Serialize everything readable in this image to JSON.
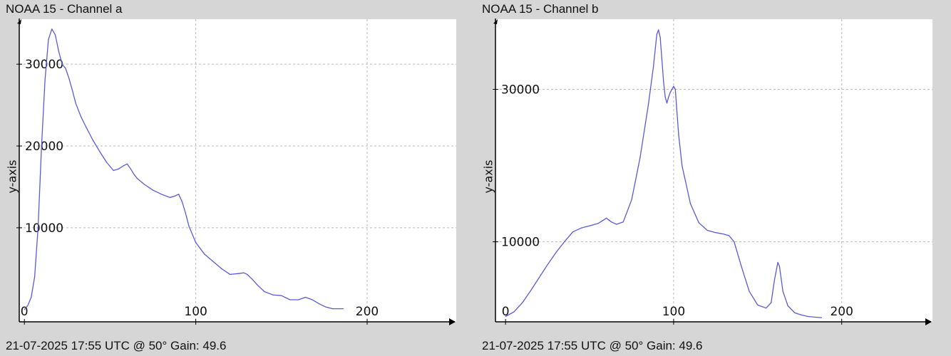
{
  "chart_data": [
    {
      "type": "line",
      "title": "NOAA 15 - Channel a",
      "footer": "21-07-2025 17:55 UTC @ 50° Gain: 49.6",
      "xlabel": "",
      "ylabel": "y-axis",
      "xlim": [
        -3,
        252
      ],
      "ylim": [
        -1500,
        35500
      ],
      "xticks": [
        0,
        100,
        200
      ],
      "yticks": [
        10000,
        20000,
        30000
      ],
      "grid": true,
      "color": "#5a5ad8",
      "series": [
        {
          "x": [
            0,
            2,
            4,
            6,
            8,
            10,
            12,
            14,
            16,
            18,
            20,
            22,
            24,
            26,
            28,
            30,
            33,
            36,
            40,
            44,
            48,
            52,
            55,
            58,
            60,
            62,
            64,
            66,
            70,
            75,
            80,
            85,
            88,
            90,
            92,
            94,
            96,
            100,
            105,
            110,
            115,
            120,
            125,
            128,
            130,
            133,
            136,
            140,
            145,
            150,
            155,
            160,
            164,
            168,
            172,
            176,
            180,
            184,
            186
          ],
          "y": [
            0,
            500,
            1500,
            4000,
            10000,
            20000,
            28000,
            33000,
            34300,
            33600,
            31600,
            30000,
            29500,
            28300,
            26800,
            25200,
            23600,
            22300,
            20700,
            19300,
            18000,
            17000,
            17200,
            17600,
            17800,
            17200,
            16500,
            16000,
            15300,
            14600,
            14100,
            13700,
            13900,
            14100,
            13200,
            11800,
            10200,
            8200,
            6800,
            5900,
            5000,
            4300,
            4400,
            4500,
            4300,
            3700,
            3000,
            2200,
            1800,
            1700,
            1200,
            1200,
            1500,
            1200,
            700,
            300,
            100,
            100,
            100
          ]
        }
      ]
    },
    {
      "type": "line",
      "title": "NOAA 15 - Channel b",
      "footer": "21-07-2025 17:55 UTC @ 50° Gain: 49.6",
      "xlabel": "",
      "ylabel": "y-axis",
      "xlim": [
        -6,
        254
      ],
      "ylim": [
        -500,
        39200
      ],
      "xticks": [
        0,
        100,
        200
      ],
      "yticks": [
        10000,
        30000
      ],
      "grid": true,
      "color": "#5a5ad8",
      "series": [
        {
          "x": [
            0,
            5,
            10,
            15,
            20,
            25,
            30,
            35,
            40,
            45,
            50,
            55,
            60,
            63,
            66,
            70,
            75,
            80,
            85,
            88,
            90,
            91,
            92,
            93,
            94,
            95,
            96,
            97,
            98,
            100,
            101,
            102,
            103,
            105,
            110,
            115,
            120,
            125,
            130,
            133,
            136,
            140,
            145,
            150,
            155,
            158,
            160,
            162,
            163,
            165,
            168,
            172,
            176,
            180,
            185,
            188
          ],
          "y": [
            200,
            800,
            2000,
            3600,
            5300,
            7000,
            8600,
            10000,
            11300,
            11800,
            12100,
            12400,
            13100,
            12600,
            12300,
            12600,
            15500,
            21000,
            28000,
            33000,
            37200,
            37800,
            36800,
            34000,
            31000,
            29000,
            28200,
            29000,
            29600,
            30400,
            30000,
            27000,
            24000,
            20000,
            15000,
            12500,
            11500,
            11200,
            11000,
            10800,
            10000,
            7000,
            3500,
            1700,
            1300,
            2000,
            5000,
            7300,
            6800,
            3500,
            1600,
            700,
            400,
            200,
            100,
            50
          ]
        }
      ]
    }
  ]
}
